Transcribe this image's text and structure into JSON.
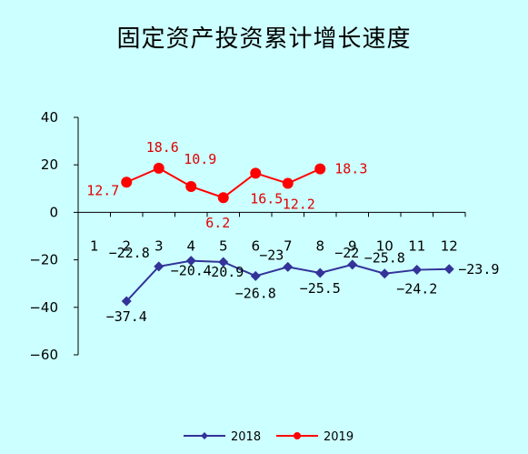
{
  "chart_data": {
    "type": "line",
    "title": "固定资产投资累计增长速度",
    "xlabel": "",
    "ylabel": "",
    "categories": [
      "1",
      "2",
      "3",
      "4",
      "5",
      "6",
      "7",
      "8",
      "9",
      "10",
      "11",
      "12"
    ],
    "ylim": [
      -60,
      40
    ],
    "yticks": [
      40,
      20,
      0,
      -20,
      -40,
      -60
    ],
    "grid": false,
    "legend_position": "bottom",
    "series": [
      {
        "name": "2018",
        "color": "#333399",
        "marker": "diamond",
        "values": [
          null,
          -37.4,
          -22.8,
          -20.4,
          -20.9,
          -26.8,
          -23,
          -25.5,
          -22,
          -25.8,
          -24.2,
          -23.9
        ],
        "labels": [
          null,
          "-37.4",
          "-22.8",
          "-20.4",
          "-20.9",
          "-26.8",
          "-23",
          "-25.5",
          "-22",
          "-25.8",
          "-24.2",
          "-23.9"
        ]
      },
      {
        "name": "2019",
        "color": "#ff0000",
        "marker": "circle",
        "values": [
          null,
          12.7,
          18.6,
          10.9,
          6.2,
          16.5,
          12.2,
          18.3,
          null,
          null,
          null,
          null
        ],
        "labels": [
          null,
          "12.7",
          "18.6",
          "10.9",
          "6.2",
          "16.5",
          "12.2",
          "18.3",
          null,
          null,
          null,
          null
        ]
      }
    ]
  }
}
